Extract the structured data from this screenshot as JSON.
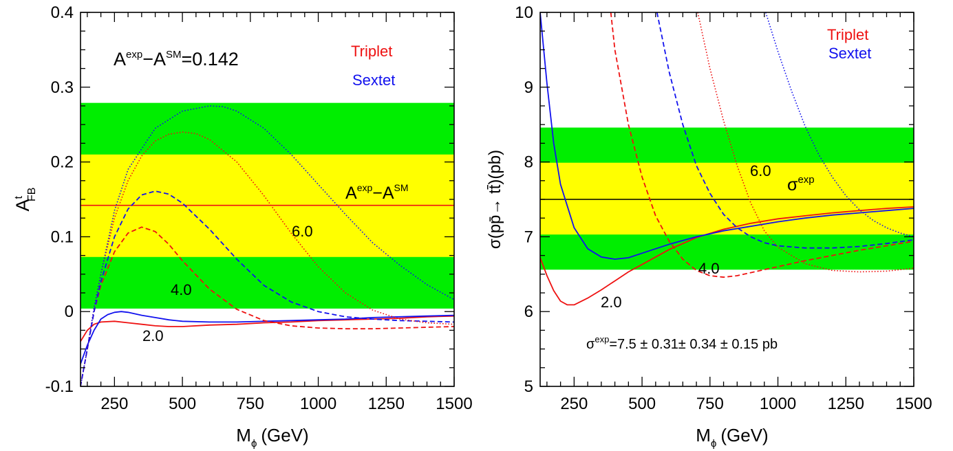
{
  "chart_data": [
    {
      "type": "line",
      "xlabel_main": "M",
      "xlabel_sub": "ϕ",
      "xlabel_unit": "(GeV)",
      "ylabel_main": "A",
      "ylabel_sup": "t",
      "ylabel_sub": "FB",
      "xlim": [
        125,
        1500
      ],
      "ylim": [
        -0.1,
        0.4
      ],
      "xticks": [
        250,
        500,
        750,
        1000,
        1250,
        1500
      ],
      "yticks": [
        -0.1,
        0,
        0.1,
        0.2,
        0.3,
        0.4
      ],
      "ytick_labels": [
        "-0.1",
        "0",
        "0.1",
        "0.2",
        "0.3",
        "0.4"
      ],
      "bands": [
        {
          "name": "green",
          "color": "#00ee00",
          "range": [
            0.004,
            0.279
          ]
        },
        {
          "name": "yellow",
          "color": "#ffff00",
          "range": [
            0.073,
            0.21
          ]
        }
      ],
      "reference_line": {
        "value": 0.142,
        "color": "#ee1111"
      },
      "annotations": {
        "formula": {
          "A": "A",
          "sup1": "exp",
          "minus": "−A",
          "sup2": "SM",
          "rest": "=0.142"
        },
        "ref_label": {
          "A": "A",
          "sup1": "exp",
          "minus": "−A",
          "sup2": "SM"
        },
        "legend_triplet": "Triplet",
        "legend_sextet": "Sextet",
        "label_60": "6.0",
        "label_40": "4.0",
        "label_20": "2.0"
      },
      "series": [
        {
          "model": "Triplet",
          "coupling": "2.0",
          "style": "solid",
          "color": "#ee1111",
          "points": [
            [
              125,
              -0.04
            ],
            [
              150,
              -0.025
            ],
            [
              175,
              -0.017
            ],
            [
              200,
              -0.014
            ],
            [
              250,
              -0.013
            ],
            [
              300,
              -0.015
            ],
            [
              350,
              -0.017
            ],
            [
              400,
              -0.019
            ],
            [
              450,
              -0.02
            ],
            [
              500,
              -0.02
            ],
            [
              600,
              -0.018
            ],
            [
              700,
              -0.017
            ],
            [
              800,
              -0.015
            ],
            [
              900,
              -0.014
            ],
            [
              1000,
              -0.012
            ],
            [
              1100,
              -0.011
            ],
            [
              1200,
              -0.01
            ],
            [
              1300,
              -0.009
            ],
            [
              1400,
              -0.007
            ],
            [
              1500,
              -0.006
            ]
          ]
        },
        {
          "model": "Sextet",
          "coupling": "2.0",
          "style": "solid",
          "color": "#1111ee",
          "points": [
            [
              125,
              -0.07
            ],
            [
              150,
              -0.045
            ],
            [
              175,
              -0.025
            ],
            [
              200,
              -0.01
            ],
            [
              225,
              -0.004
            ],
            [
              250,
              -0.001
            ],
            [
              275,
              0.0
            ],
            [
              300,
              -0.001
            ],
            [
              350,
              -0.005
            ],
            [
              400,
              -0.008
            ],
            [
              450,
              -0.011
            ],
            [
              500,
              -0.013
            ],
            [
              600,
              -0.014
            ],
            [
              700,
              -0.014
            ],
            [
              800,
              -0.013
            ],
            [
              900,
              -0.012
            ],
            [
              1000,
              -0.011
            ],
            [
              1100,
              -0.01
            ],
            [
              1200,
              -0.008
            ],
            [
              1300,
              -0.007
            ],
            [
              1400,
              -0.006
            ],
            [
              1500,
              -0.005
            ]
          ]
        },
        {
          "model": "Triplet",
          "coupling": "4.0",
          "style": "dashed",
          "color": "#ee1111",
          "points": [
            [
              125,
              -0.1
            ],
            [
              150,
              -0.05
            ],
            [
              175,
              0.0
            ],
            [
              200,
              0.035
            ],
            [
              250,
              0.08
            ],
            [
              300,
              0.105
            ],
            [
              350,
              0.113
            ],
            [
              400,
              0.107
            ],
            [
              450,
              0.09
            ],
            [
              500,
              0.068
            ],
            [
              600,
              0.03
            ],
            [
              700,
              0.003
            ],
            [
              800,
              -0.012
            ],
            [
              900,
              -0.019
            ],
            [
              1000,
              -0.022
            ],
            [
              1100,
              -0.023
            ],
            [
              1200,
              -0.023
            ],
            [
              1300,
              -0.022
            ],
            [
              1400,
              -0.021
            ],
            [
              1500,
              -0.02
            ]
          ]
        },
        {
          "model": "Sextet",
          "coupling": "4.0",
          "style": "dashed",
          "color": "#1111ee",
          "points": [
            [
              125,
              -0.1
            ],
            [
              150,
              -0.05
            ],
            [
              175,
              0.0
            ],
            [
              200,
              0.04
            ],
            [
              250,
              0.1
            ],
            [
              300,
              0.137
            ],
            [
              350,
              0.156
            ],
            [
              400,
              0.161
            ],
            [
              450,
              0.157
            ],
            [
              500,
              0.145
            ],
            [
              600,
              0.11
            ],
            [
              700,
              0.07
            ],
            [
              800,
              0.035
            ],
            [
              900,
              0.013
            ],
            [
              1000,
              0.0
            ],
            [
              1100,
              -0.007
            ],
            [
              1200,
              -0.01
            ],
            [
              1300,
              -0.012
            ],
            [
              1400,
              -0.013
            ],
            [
              1500,
              -0.014
            ]
          ]
        },
        {
          "model": "Triplet",
          "coupling": "6.0",
          "style": "dotted",
          "color": "#ee1111",
          "points": [
            [
              125,
              -0.1
            ],
            [
              150,
              -0.05
            ],
            [
              175,
              0.005
            ],
            [
              200,
              0.05
            ],
            [
              250,
              0.125
            ],
            [
              300,
              0.175
            ],
            [
              350,
              0.208
            ],
            [
              400,
              0.228
            ],
            [
              450,
              0.237
            ],
            [
              500,
              0.24
            ],
            [
              550,
              0.238
            ],
            [
              600,
              0.23
            ],
            [
              700,
              0.2
            ],
            [
              800,
              0.155
            ],
            [
              900,
              0.105
            ],
            [
              1000,
              0.06
            ],
            [
              1100,
              0.025
            ],
            [
              1200,
              0.002
            ],
            [
              1300,
              -0.01
            ],
            [
              1400,
              -0.015
            ],
            [
              1500,
              -0.017
            ]
          ]
        },
        {
          "model": "Sextet",
          "coupling": "6.0",
          "style": "dotted",
          "color": "#1111ee",
          "points": [
            [
              125,
              -0.1
            ],
            [
              150,
              -0.05
            ],
            [
              175,
              0.005
            ],
            [
              200,
              0.05
            ],
            [
              250,
              0.135
            ],
            [
              300,
              0.19
            ],
            [
              400,
              0.245
            ],
            [
              500,
              0.268
            ],
            [
              600,
              0.275
            ],
            [
              650,
              0.274
            ],
            [
              700,
              0.268
            ],
            [
              800,
              0.245
            ],
            [
              900,
              0.21
            ],
            [
              1000,
              0.17
            ],
            [
              1100,
              0.13
            ],
            [
              1200,
              0.092
            ],
            [
              1300,
              0.062
            ],
            [
              1400,
              0.036
            ],
            [
              1500,
              0.016
            ]
          ]
        }
      ]
    },
    {
      "type": "line",
      "xlabel_main": "M",
      "xlabel_sub": "ϕ",
      "xlabel_unit": "(GeV)",
      "ylabel_text": "σ(pp̄→ tt̄)(pb)",
      "xlim": [
        125,
        1500
      ],
      "ylim": [
        5,
        10
      ],
      "xticks": [
        250,
        500,
        750,
        1000,
        1250,
        1500
      ],
      "yticks": [
        5,
        6,
        7,
        8,
        9,
        10
      ],
      "ytick_labels": [
        "5",
        "6",
        "7",
        "8",
        "9",
        "10"
      ],
      "bands": [
        {
          "name": "green",
          "color": "#00ee00",
          "range": [
            6.56,
            8.46
          ]
        },
        {
          "name": "yellow",
          "color": "#ffff00",
          "range": [
            7.03,
            7.99
          ]
        }
      ],
      "reference_line": {
        "value": 7.5,
        "color": "#000000"
      },
      "annotations": {
        "sigma_formula": {
          "sigma": "σ",
          "sup": "exp",
          "rest": "=7.5 ± 0.31± 0.34 ± 0.15 pb"
        },
        "sigma_label": {
          "sigma": "σ",
          "sup": "exp"
        },
        "legend_triplet": "Triplet",
        "legend_sextet": "Sextet",
        "label_60": "6.0",
        "label_40": "4.0",
        "label_20": "2.0"
      },
      "series": [
        {
          "model": "Triplet",
          "coupling": "2.0",
          "style": "solid",
          "color": "#ee1111",
          "points": [
            [
              125,
              6.72
            ],
            [
              150,
              6.48
            ],
            [
              175,
              6.28
            ],
            [
              200,
              6.14
            ],
            [
              225,
              6.09
            ],
            [
              250,
              6.09
            ],
            [
              300,
              6.18
            ],
            [
              350,
              6.29
            ],
            [
              400,
              6.41
            ],
            [
              450,
              6.53
            ],
            [
              500,
              6.63
            ],
            [
              600,
              6.83
            ],
            [
              700,
              6.99
            ],
            [
              800,
              7.1
            ],
            [
              900,
              7.18
            ],
            [
              1000,
              7.24
            ],
            [
              1100,
              7.28
            ],
            [
              1200,
              7.32
            ],
            [
              1300,
              7.35
            ],
            [
              1400,
              7.38
            ],
            [
              1500,
              7.4
            ]
          ]
        },
        {
          "model": "Sextet",
          "coupling": "2.0",
          "style": "solid",
          "color": "#1111ee",
          "points": [
            [
              125,
              10.0
            ],
            [
              150,
              9.05
            ],
            [
              175,
              8.25
            ],
            [
              200,
              7.7
            ],
            [
              250,
              7.12
            ],
            [
              300,
              6.84
            ],
            [
              350,
              6.73
            ],
            [
              400,
              6.7
            ],
            [
              450,
              6.72
            ],
            [
              500,
              6.78
            ],
            [
              600,
              6.9
            ],
            [
              700,
              7.0
            ],
            [
              800,
              7.08
            ],
            [
              900,
              7.14
            ],
            [
              1000,
              7.2
            ],
            [
              1100,
              7.25
            ],
            [
              1200,
              7.29
            ],
            [
              1300,
              7.32
            ],
            [
              1400,
              7.35
            ],
            [
              1500,
              7.38
            ]
          ]
        },
        {
          "model": "Triplet",
          "coupling": "4.0",
          "style": "dashed",
          "color": "#ee1111",
          "points": [
            [
              385,
              10.0
            ],
            [
              400,
              9.5
            ],
            [
              450,
              8.5
            ],
            [
              500,
              7.8
            ],
            [
              550,
              7.28
            ],
            [
              600,
              6.94
            ],
            [
              650,
              6.7
            ],
            [
              700,
              6.55
            ],
            [
              750,
              6.48
            ],
            [
              800,
              6.46
            ],
            [
              850,
              6.48
            ],
            [
              900,
              6.52
            ],
            [
              1000,
              6.6
            ],
            [
              1100,
              6.68
            ],
            [
              1200,
              6.75
            ],
            [
              1300,
              6.82
            ],
            [
              1400,
              6.88
            ],
            [
              1500,
              6.94
            ]
          ]
        },
        {
          "model": "Sextet",
          "coupling": "4.0",
          "style": "dashed",
          "color": "#1111ee",
          "points": [
            [
              555,
              10.0
            ],
            [
              600,
              9.2
            ],
            [
              650,
              8.5
            ],
            [
              700,
              7.95
            ],
            [
              750,
              7.58
            ],
            [
              800,
              7.3
            ],
            [
              850,
              7.12
            ],
            [
              900,
              7.0
            ],
            [
              950,
              6.92
            ],
            [
              1000,
              6.88
            ],
            [
              1100,
              6.85
            ],
            [
              1200,
              6.85
            ],
            [
              1300,
              6.87
            ],
            [
              1400,
              6.91
            ],
            [
              1500,
              6.96
            ]
          ]
        },
        {
          "model": "Triplet",
          "coupling": "6.0",
          "style": "dotted",
          "color": "#ee1111",
          "points": [
            [
              705,
              10.0
            ],
            [
              750,
              9.25
            ],
            [
              800,
              8.55
            ],
            [
              850,
              7.95
            ],
            [
              900,
              7.45
            ],
            [
              950,
              7.08
            ],
            [
              1000,
              6.86
            ],
            [
              1100,
              6.64
            ],
            [
              1200,
              6.55
            ],
            [
              1300,
              6.53
            ],
            [
              1400,
              6.54
            ],
            [
              1500,
              6.58
            ]
          ]
        },
        {
          "model": "Sextet",
          "coupling": "6.0",
          "style": "dotted",
          "color": "#1111ee",
          "points": [
            [
              955,
              10.0
            ],
            [
              1000,
              9.48
            ],
            [
              1050,
              8.95
            ],
            [
              1100,
              8.48
            ],
            [
              1150,
              8.1
            ],
            [
              1200,
              7.8
            ],
            [
              1250,
              7.55
            ],
            [
              1300,
              7.36
            ],
            [
              1350,
              7.22
            ],
            [
              1400,
              7.12
            ],
            [
              1450,
              7.05
            ],
            [
              1500,
              7.0
            ]
          ]
        }
      ]
    }
  ]
}
